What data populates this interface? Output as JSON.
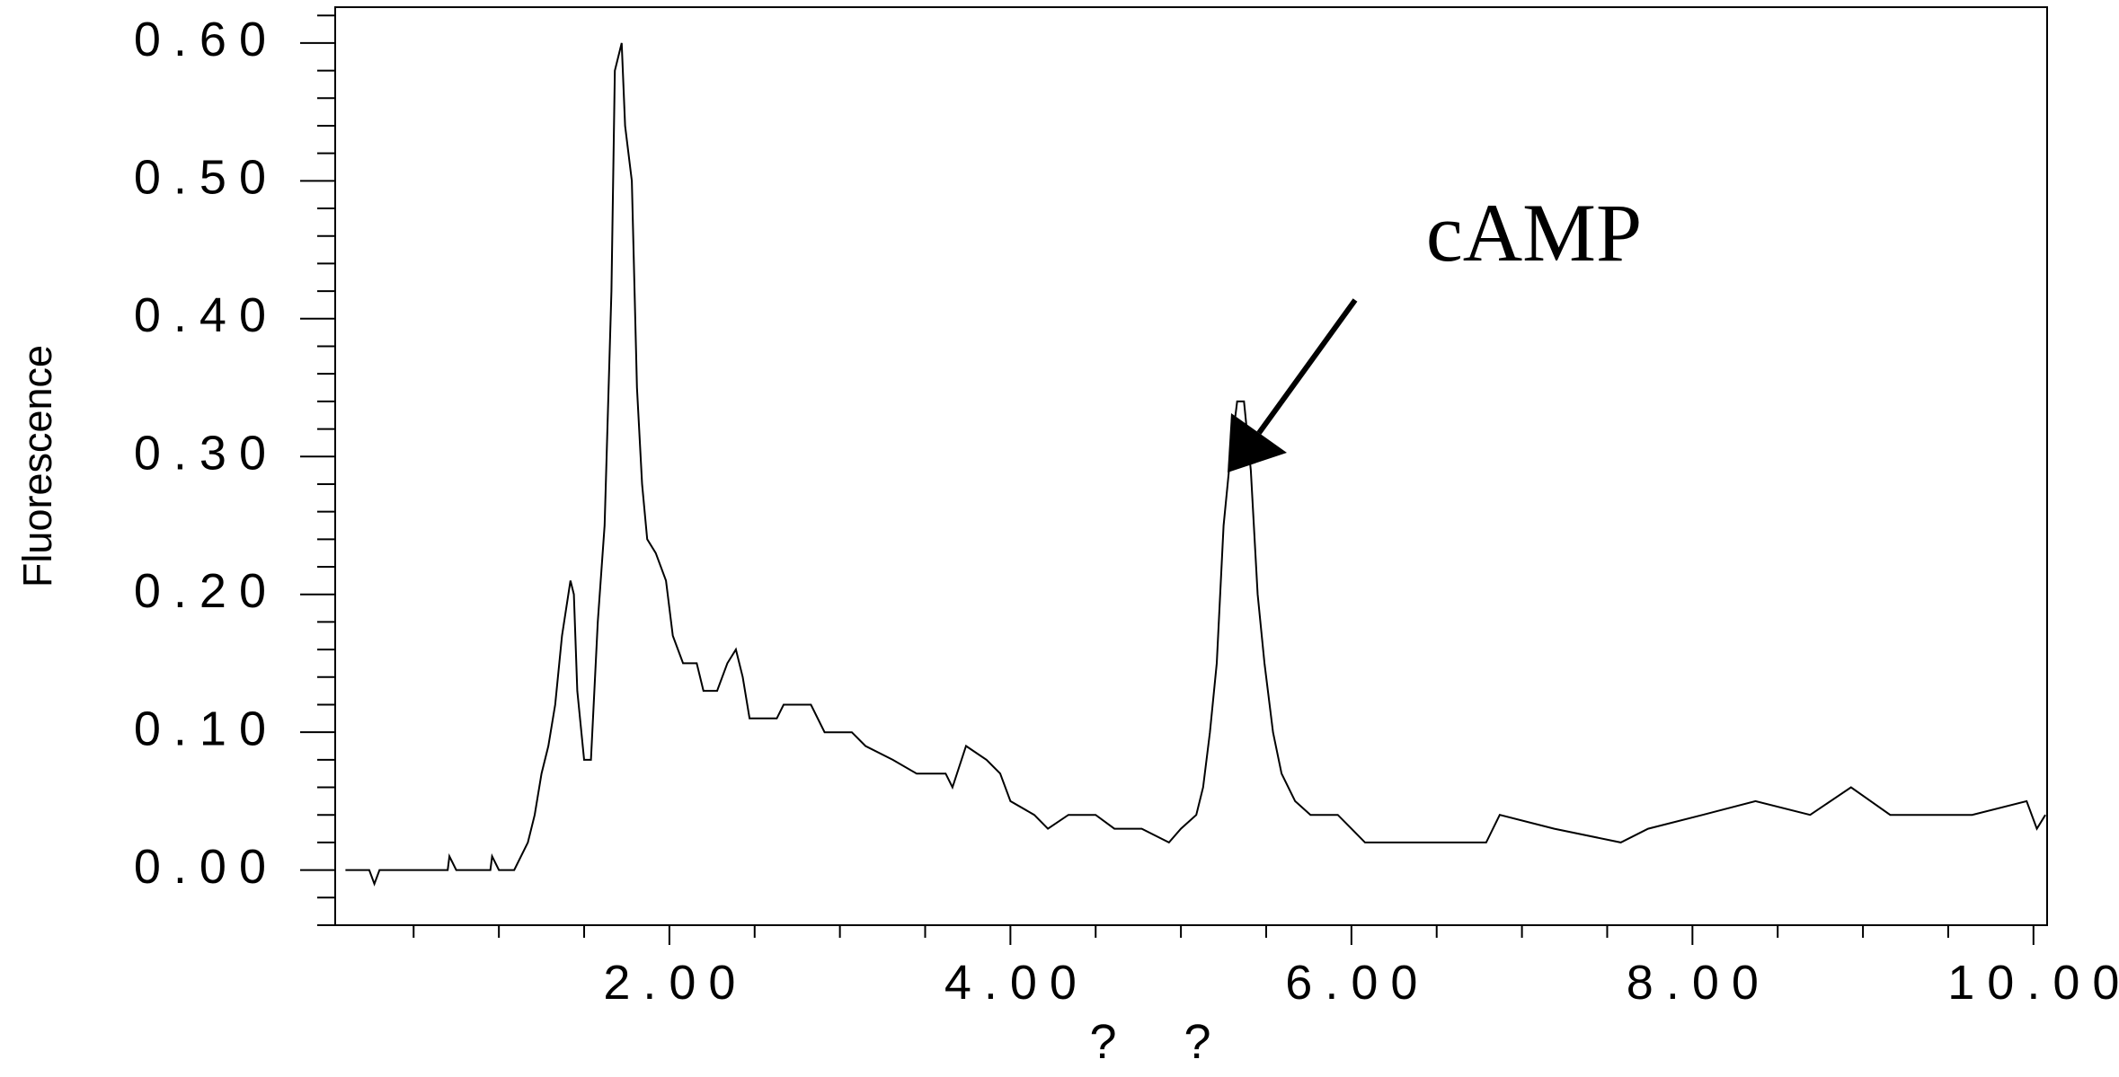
{
  "chart_data": {
    "type": "line",
    "ylabel": "Fluorescence",
    "xlabel": "? ?",
    "annotation": "cAMP",
    "xlim": [
      0.04,
      10.08
    ],
    "ylim": [
      -0.04,
      0.626
    ],
    "xticks": [
      {
        "value": 2,
        "label": "2.00"
      },
      {
        "value": 4,
        "label": "4.00"
      },
      {
        "value": 6,
        "label": "6.00"
      },
      {
        "value": 8,
        "label": "8.00"
      },
      {
        "value": 10,
        "label": "10.00"
      }
    ],
    "yticks": [
      {
        "value": 0,
        "label": "0.00"
      },
      {
        "value": 0.1,
        "label": "0.10"
      },
      {
        "value": 0.2,
        "label": "0.20"
      },
      {
        "value": 0.3,
        "label": "0.30"
      },
      {
        "value": 0.4,
        "label": "0.40"
      },
      {
        "value": 0.5,
        "label": "0.50"
      },
      {
        "value": 0.6,
        "label": "0.60"
      }
    ],
    "x_minor_ticks": [
      0.5,
      1,
      1.5,
      2.5,
      3,
      3.5,
      4.5,
      5,
      5.5,
      6.5,
      7,
      7.5,
      8.5,
      9,
      9.5
    ],
    "y_minor_ticks": [
      -0.04,
      -0.02,
      0.02,
      0.04,
      0.06,
      0.08,
      0.12,
      0.14,
      0.16,
      0.18,
      0.22,
      0.24,
      0.26,
      0.28,
      0.32,
      0.34,
      0.36,
      0.38,
      0.42,
      0.44,
      0.46,
      0.48,
      0.52,
      0.54,
      0.56,
      0.58,
      0.62
    ],
    "series": [
      {
        "color": "#000000",
        "x": [
          0.1,
          0.24,
          0.27,
          0.3,
          0.7,
          0.71,
          0.75,
          0.95,
          0.96,
          1.0,
          1.09,
          1.17,
          1.21,
          1.25,
          1.29,
          1.33,
          1.37,
          1.42,
          1.44,
          1.46,
          1.5,
          1.54,
          1.58,
          1.62,
          1.66,
          1.68,
          1.72,
          1.74,
          1.78,
          1.81,
          1.84,
          1.87,
          1.92,
          1.98,
          2.02,
          2.08,
          2.16,
          2.2,
          2.28,
          2.34,
          2.39,
          2.43,
          2.47,
          2.63,
          2.67,
          2.83,
          2.91,
          3.07,
          3.15,
          3.31,
          3.45,
          3.62,
          3.66,
          3.74,
          3.86,
          3.94,
          4.0,
          4.14,
          4.22,
          4.34,
          4.5,
          4.61,
          4.77,
          4.93,
          5.0,
          5.09,
          5.13,
          5.17,
          5.21,
          5.25,
          5.29,
          5.33,
          5.37,
          5.41,
          5.45,
          5.49,
          5.54,
          5.59,
          5.67,
          5.76,
          5.92,
          6.0,
          6.08,
          6.39,
          6.51,
          6.79,
          6.87,
          7.19,
          7.58,
          7.74,
          8.06,
          8.37,
          8.69,
          8.93,
          9.16,
          9.64,
          9.96,
          10.02,
          10.07
        ],
        "values": [
          0,
          0,
          -0.01,
          0,
          0,
          0.01,
          0,
          0,
          0.01,
          0,
          0,
          0.02,
          0.04,
          0.07,
          0.09,
          0.12,
          0.17,
          0.21,
          0.2,
          0.13,
          0.08,
          0.08,
          0.18,
          0.25,
          0.42,
          0.58,
          0.6,
          0.54,
          0.5,
          0.35,
          0.28,
          0.24,
          0.23,
          0.21,
          0.17,
          0.15,
          0.15,
          0.13,
          0.13,
          0.15,
          0.16,
          0.14,
          0.11,
          0.11,
          0.12,
          0.12,
          0.1,
          0.1,
          0.09,
          0.08,
          0.07,
          0.07,
          0.06,
          0.09,
          0.08,
          0.07,
          0.05,
          0.04,
          0.03,
          0.04,
          0.04,
          0.03,
          0.03,
          0.02,
          0.03,
          0.04,
          0.06,
          0.1,
          0.15,
          0.25,
          0.3,
          0.34,
          0.34,
          0.29,
          0.2,
          0.15,
          0.1,
          0.07,
          0.05,
          0.04,
          0.04,
          0.03,
          0.02,
          0.02,
          0.02,
          0.02,
          0.04,
          0.03,
          0.02,
          0.03,
          0.04,
          0.05,
          0.04,
          0.06,
          0.04,
          0.04,
          0.05,
          0.03,
          0.04
        ]
      }
    ]
  }
}
